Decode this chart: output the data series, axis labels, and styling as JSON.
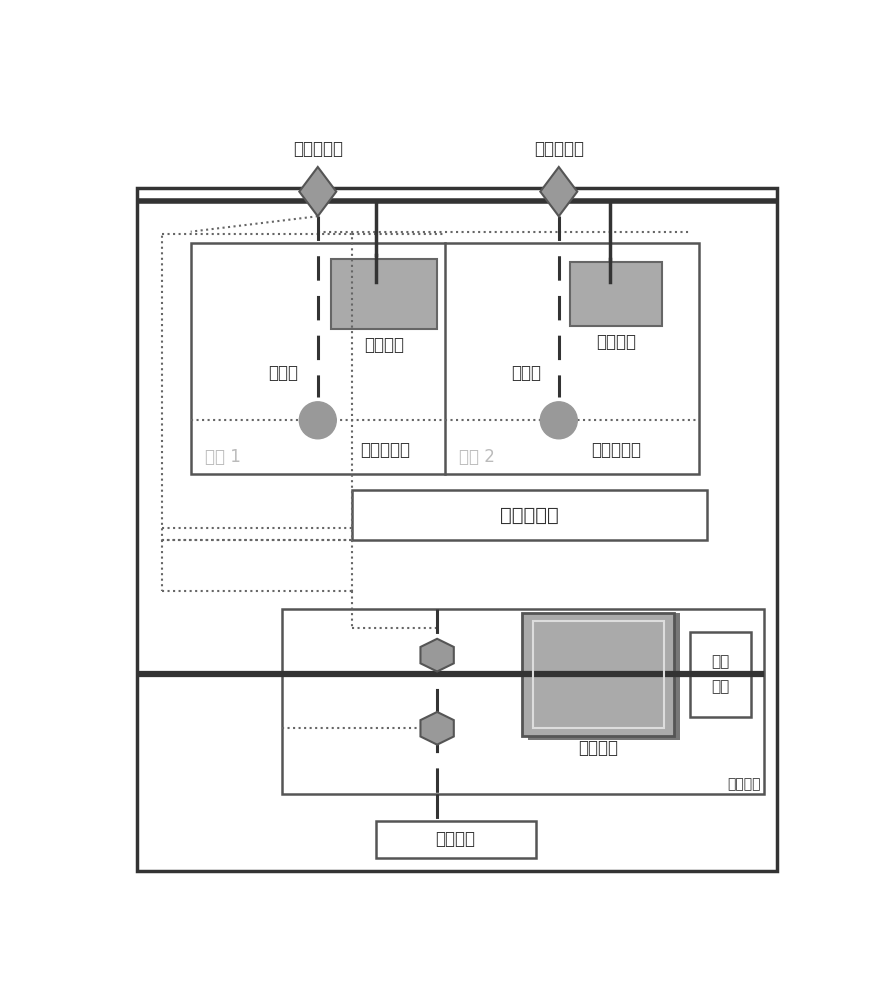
{
  "fig_width": 8.92,
  "fig_height": 10.0,
  "bg_color": "#ffffff",
  "gray_fill": "#999999",
  "gray_fill_med": "#aaaaaa",
  "gray_fill_dark": "#888888",
  "box_edge": "#555555",
  "line_color": "#333333",
  "dotted_color": "#666666",
  "text_color": "#333333",
  "light_gray_text": "#bbbbbb",
  "font_size_large": 14,
  "font_size_medium": 12,
  "font_size_small": 10,
  "labels": {
    "sanfa1": "三通电磁阀",
    "sanfa2": "三通电磁阀",
    "fanjiguan1": "风机盘管",
    "fanjiguan2": "风机盘管",
    "penlintou1": "噴淤头",
    "penlintou2": "噴淤头",
    "fangyan1": "感烟探测器",
    "fangyan2": "感烟探测器",
    "fangjian1": "房间 1",
    "fangjian2": "房间 2",
    "xiaofang": "消防控制室",
    "shuibeng": "多台水泵",
    "kongtiao": "空调\n主机",
    "kongtiaojifang": "空调机房",
    "xiaofangfangcai": "消防泵房"
  }
}
